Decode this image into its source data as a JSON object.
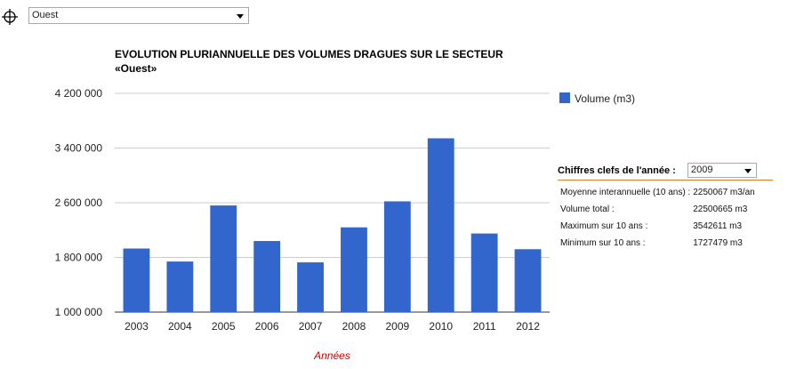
{
  "toolbar": {
    "crosshair_icon": "crosshair-icon",
    "sector_value": "Ouest"
  },
  "chart_title": {
    "line1": "EVOLUTION PLURIANNUELLE DES VOLUMES DRAGUES SUR LE SECTEUR",
    "line2": "«Ouest»"
  },
  "legend": {
    "label": "Volume (m3)",
    "color": "#3366cc"
  },
  "key_figures": {
    "label": "Chiffres clefs de l'année :",
    "selected_year": "2009",
    "rows": [
      {
        "label": "Moyenne interannuelle (10 ans) :",
        "value": "2250067 m3/an"
      },
      {
        "label": "Volume total :",
        "value": "22500665 m3"
      },
      {
        "label": "Maximum sur 10 ans :",
        "value": "3542611 m3"
      },
      {
        "label": "Minimum sur 10 ans :",
        "value": "1727479 m3"
      }
    ],
    "accent": "#e07b2e"
  },
  "chart_data": {
    "type": "bar",
    "categories": [
      "2003",
      "2004",
      "2005",
      "2006",
      "2007",
      "2008",
      "2009",
      "2010",
      "2011",
      "2012"
    ],
    "series": [
      {
        "name": "Volume (m3)",
        "values": [
          1930000,
          1740000,
          2560000,
          2040000,
          1727479,
          2240000,
          2620000,
          3542611,
          2150000,
          1920000
        ]
      }
    ],
    "ylim": [
      1000000,
      4200000
    ],
    "yticks": [
      1000000,
      1800000,
      2600000,
      3400000,
      4200000
    ],
    "ytick_labels": [
      "1 000 000",
      "1 800 000",
      "2 600 000",
      "3 400 000",
      "4 200 000"
    ],
    "xlabel": "Années",
    "ylabel": "",
    "grid": true,
    "legend_position": "right",
    "bar_color": "#3366cc",
    "xlabel_color": "#cc0000"
  }
}
